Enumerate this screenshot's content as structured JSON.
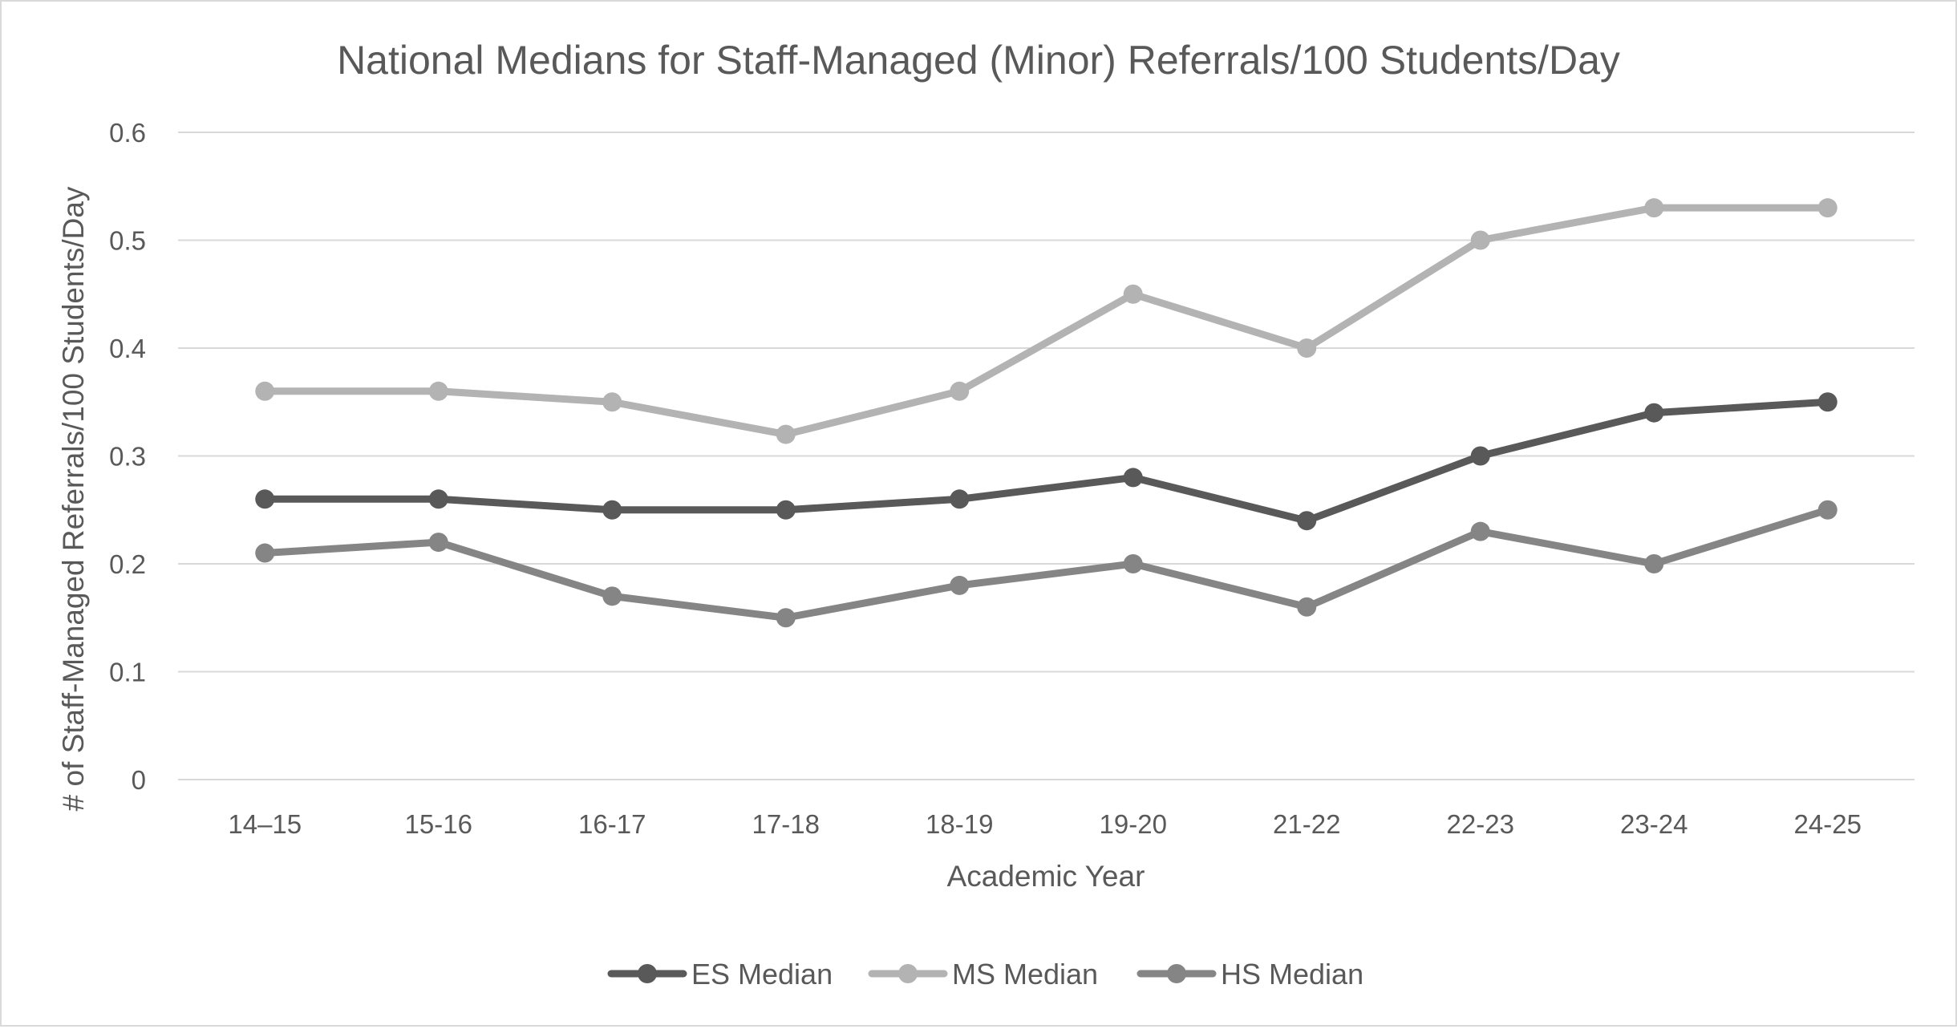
{
  "chart_data": {
    "type": "line",
    "title": "National Medians for Staff-Managed (Minor) Referrals/100 Students/Day",
    "xlabel": "Academic Year",
    "ylabel": "# of Staff-Managed Referrals/100 Students/Day",
    "ylim": [
      0,
      0.6
    ],
    "yticks": [
      "0",
      "0.1",
      "0.2",
      "0.3",
      "0.4",
      "0.5",
      "0.6"
    ],
    "ytick_values": [
      0,
      0.1,
      0.2,
      0.3,
      0.4,
      0.5,
      0.6
    ],
    "grid": true,
    "legend_position": "bottom",
    "categories": [
      "14–15",
      "15-16",
      "16-17",
      "17-18",
      "18-19",
      "19-20",
      "21-22",
      "22-23",
      "23-24",
      "24-25"
    ],
    "series": [
      {
        "name": "ES Median",
        "color": "#595959",
        "values": [
          0.26,
          0.26,
          0.25,
          0.25,
          0.26,
          0.28,
          0.24,
          0.3,
          0.34,
          0.35
        ]
      },
      {
        "name": "MS Median",
        "color": "#b3b3b3",
        "values": [
          0.36,
          0.36,
          0.35,
          0.32,
          0.36,
          0.45,
          0.4,
          0.5,
          0.53,
          0.53
        ]
      },
      {
        "name": "HS Median",
        "color": "#858585",
        "values": [
          0.21,
          0.22,
          0.17,
          0.15,
          0.18,
          0.2,
          0.16,
          0.23,
          0.2,
          0.25
        ]
      }
    ]
  }
}
